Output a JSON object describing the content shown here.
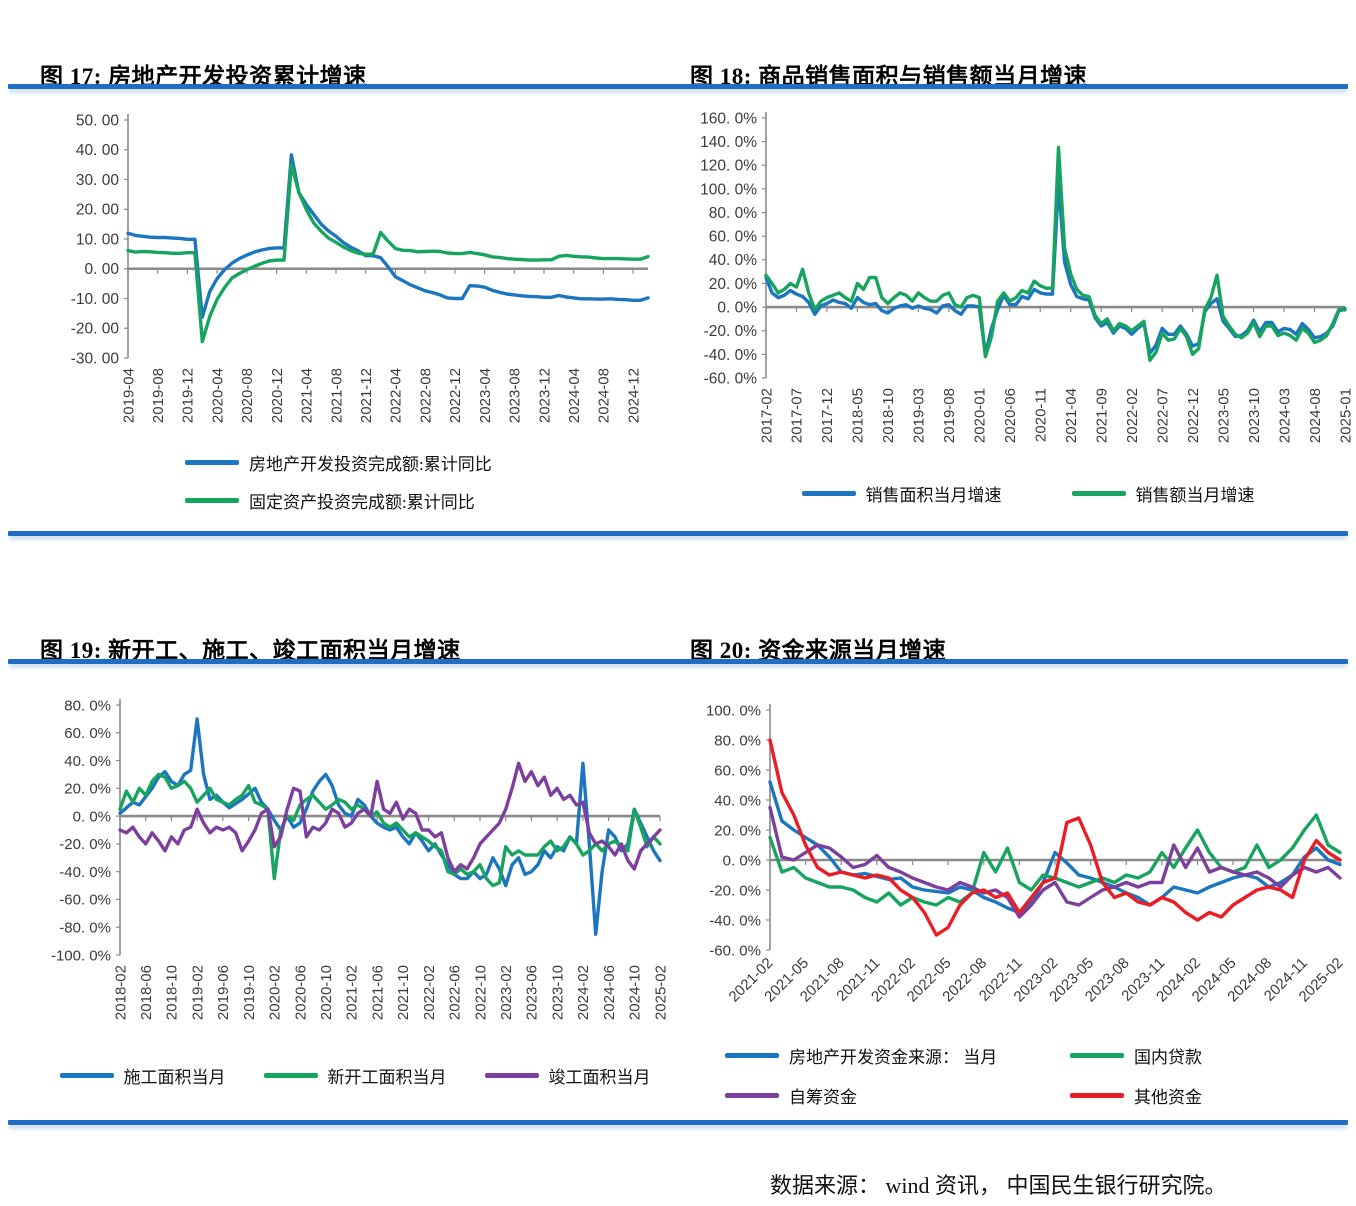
{
  "page": {
    "footer": "数据来源： wind 资讯， 中国民生银行研究院。"
  },
  "chart_data": [
    {
      "id": "fig17",
      "type": "line",
      "title": "图 17: 房地产开发投资累计增速",
      "ylim": [
        -30,
        50
      ],
      "grid": false,
      "legend_position": "bottom-left",
      "y_tick_values": [
        50,
        40,
        30,
        20,
        10,
        0,
        -10,
        -20,
        -30
      ],
      "y_tick_labels": [
        "50. 00",
        "40. 00",
        "30. 00",
        "20. 00",
        "10. 00",
        "0. 00",
        "-10. 00",
        "-20. 00",
        "-30. 00"
      ],
      "x_tick_every": 4,
      "x_tick_labels": [
        "2019-04",
        "2019-08",
        "2019-12",
        "2020-04",
        "2020-08",
        "2020-12",
        "2021-04",
        "2021-08",
        "2021-12",
        "2022-04",
        "2022-08",
        "2022-12",
        "2023-04",
        "2023-08",
        "2023-12",
        "2024-04",
        "2024-08",
        "2024-12"
      ],
      "x_range_note": "monthly points 2019-04 to 2025-02",
      "series": [
        {
          "name": "房地产开发投资完成额:累计同比",
          "color": "#1b75bf",
          "values": [
            11.9,
            11.2,
            10.9,
            10.6,
            10.5,
            10.5,
            10.3,
            10.2,
            9.9,
            9.9,
            -16.3,
            -7.7,
            -3.3,
            -0.3,
            1.9,
            3.4,
            4.6,
            5.6,
            6.3,
            6.8,
            7.0,
            7.0,
            38.3,
            25.6,
            21.6,
            18.3,
            15.0,
            12.7,
            10.9,
            8.8,
            7.2,
            6.0,
            4.4,
            4.4,
            3.7,
            0.7,
            -2.7,
            -4.0,
            -5.4,
            -6.4,
            -7.4,
            -8.0,
            -8.8,
            -9.8,
            -10.0,
            -10.0,
            -5.7,
            -5.8,
            -6.2,
            -7.2,
            -7.9,
            -8.5,
            -8.8,
            -9.1,
            -9.3,
            -9.4,
            -9.6,
            -9.6,
            -9.0,
            -9.5,
            -9.8,
            -10.1,
            -10.1,
            -10.2,
            -10.2,
            -10.1,
            -10.3,
            -10.4,
            -10.6,
            -10.6,
            -9.8
          ]
        },
        {
          "name": "固定资产投资完成额:累计同比",
          "color": "#17a45f",
          "values": [
            6.1,
            5.6,
            5.8,
            5.7,
            5.5,
            5.4,
            5.2,
            5.2,
            5.4,
            5.4,
            -24.5,
            -16.1,
            -10.3,
            -6.3,
            -3.1,
            -1.6,
            -0.3,
            0.8,
            1.8,
            2.6,
            2.9,
            2.9,
            35.0,
            25.6,
            19.9,
            15.4,
            12.6,
            10.3,
            8.9,
            7.3,
            6.1,
            5.2,
            4.9,
            4.9,
            12.2,
            9.3,
            6.8,
            6.2,
            6.1,
            5.7,
            5.8,
            5.9,
            5.8,
            5.3,
            5.1,
            5.1,
            5.5,
            5.1,
            4.7,
            4.0,
            3.8,
            3.4,
            3.2,
            3.1,
            2.9,
            2.9,
            3.0,
            3.0,
            4.2,
            4.5,
            4.2,
            4.0,
            3.9,
            3.6,
            3.4,
            3.4,
            3.4,
            3.3,
            3.2,
            3.2,
            4.1
          ]
        }
      ]
    },
    {
      "id": "fig18",
      "type": "line",
      "title": "图 18: 商品销售面积与销售额当月增速",
      "ylim": [
        -60,
        160
      ],
      "grid": false,
      "legend_position": "bottom-center",
      "y_tick_values": [
        160,
        140,
        120,
        100,
        80,
        60,
        40,
        20,
        0,
        -20,
        -40,
        -60
      ],
      "y_tick_labels": [
        "160. 0%",
        "140. 0%",
        "120. 0%",
        "100. 0%",
        "80. 0%",
        "60. 0%",
        "40. 0%",
        "20. 0%",
        "0. 0%",
        "-20. 0%",
        "-40. 0%",
        "-60. 0%"
      ],
      "x_tick_every": 5,
      "x_tick_labels": [
        "2017-02",
        "2017-07",
        "2017-12",
        "2018-05",
        "2018-10",
        "2019-03",
        "2019-08",
        "2020-01",
        "2020-06",
        "2020-11",
        "2021-04",
        "2021-09",
        "2022-02",
        "2022-07",
        "2022-12",
        "2023-05",
        "2023-10",
        "2024-03",
        "2024-08",
        "2025-01"
      ],
      "x_range_note": "monthly points 2017-02 to 2025-01",
      "series": [
        {
          "name": "销售面积当月增速",
          "color": "#1b75bf",
          "values": [
            25,
            12,
            8,
            10,
            14,
            11,
            9,
            4,
            -6,
            1,
            3,
            6,
            4,
            3,
            -1,
            8,
            4,
            2,
            3,
            -3,
            -5,
            -1,
            1,
            2,
            -1,
            1,
            -1,
            -2,
            -5,
            1,
            2,
            -3,
            -6,
            1,
            1,
            0,
            -40,
            -18,
            -2,
            10,
            2,
            2,
            9,
            7,
            15,
            12,
            11,
            11,
            105,
            38,
            19,
            9,
            7,
            6,
            -9,
            -16,
            -13,
            -22,
            -16,
            -18,
            -23,
            -18,
            -14,
            -39,
            -32,
            -18,
            -23,
            -23,
            -16,
            -23,
            -33,
            -31,
            -4,
            3,
            7,
            -12,
            -18,
            -25,
            -24,
            -20,
            -11,
            -21,
            -13,
            -13,
            -21,
            -18,
            -19,
            -23,
            -14,
            -19,
            -26,
            -25,
            -22,
            -16,
            -3,
            -2
          ]
        },
        {
          "name": "销售额当月增速",
          "color": "#17a45f",
          "values": [
            27,
            20,
            12,
            15,
            20,
            17,
            32,
            12,
            -2,
            5,
            8,
            10,
            12,
            8,
            5,
            20,
            15,
            25,
            25,
            8,
            3,
            8,
            12,
            10,
            5,
            12,
            8,
            5,
            5,
            10,
            12,
            2,
            0,
            8,
            10,
            8,
            -42,
            -25,
            5,
            12,
            5,
            8,
            14,
            12,
            22,
            18,
            16,
            16,
            135,
            50,
            28,
            15,
            10,
            9,
            -7,
            -14,
            -10,
            -20,
            -14,
            -16,
            -20,
            -16,
            -12,
            -45,
            -38,
            -22,
            -28,
            -27,
            -18,
            -25,
            -40,
            -35,
            -2,
            8,
            27,
            -8,
            -16,
            -23,
            -26,
            -22,
            -13,
            -25,
            -16,
            -16,
            -24,
            -22,
            -24,
            -28,
            -18,
            -22,
            -30,
            -28,
            -24,
            -14,
            -2,
            -1
          ]
        }
      ]
    },
    {
      "id": "fig19",
      "type": "line",
      "title": "图 19: 新开工、施工、竣工面积当月增速",
      "ylim": [
        -100,
        80
      ],
      "grid": false,
      "legend_position": "bottom-center",
      "y_tick_values": [
        80,
        60,
        40,
        20,
        0,
        -20,
        -40,
        -60,
        -80,
        -100
      ],
      "y_tick_labels": [
        "80. 0%",
        "60. 0%",
        "40. 0%",
        "20. 0%",
        "0. 0%",
        "-20. 0%",
        "-40. 0%",
        "-60. 0%",
        "-80. 0%",
        "-100. 0%"
      ],
      "x_tick_every": 4,
      "x_tick_labels": [
        "2018-02",
        "2018-06",
        "2018-10",
        "2019-02",
        "2019-06",
        "2019-10",
        "2020-02",
        "2020-06",
        "2020-10",
        "2021-02",
        "2021-06",
        "2021-10",
        "2022-02",
        "2022-06",
        "2022-10",
        "2023-02",
        "2023-06",
        "2023-10",
        "2024-02",
        "2024-06",
        "2024-10",
        "2025-02"
      ],
      "x_range_note": "monthly points 2018-02 to 2025-02",
      "series": [
        {
          "name": "施工面积当月",
          "color": "#1b75bf",
          "values": [
            2,
            6,
            10,
            8,
            14,
            20,
            28,
            32,
            25,
            22,
            30,
            33,
            70,
            30,
            12,
            15,
            10,
            6,
            9,
            12,
            16,
            20,
            10,
            5,
            -3,
            -10,
            0,
            -8,
            -5,
            5,
            18,
            25,
            30,
            22,
            8,
            2,
            0,
            12,
            8,
            0,
            -5,
            -8,
            -10,
            -8,
            -15,
            -20,
            -12,
            -18,
            -25,
            -20,
            -28,
            -35,
            -42,
            -45,
            -45,
            -40,
            -45,
            -42,
            -30,
            -38,
            -50,
            -35,
            -30,
            -42,
            -40,
            -35,
            -25,
            -30,
            -22,
            -25,
            -15,
            -20,
            38,
            -20,
            -85,
            -40,
            -10,
            -15,
            -25,
            -20,
            5,
            -5,
            -15,
            -25,
            -32
          ]
        },
        {
          "name": "新开工面积当月",
          "color": "#17a45f",
          "values": [
            5,
            18,
            10,
            20,
            15,
            25,
            30,
            28,
            20,
            22,
            25,
            20,
            10,
            15,
            20,
            12,
            10,
            8,
            12,
            15,
            22,
            10,
            8,
            5,
            -45,
            -10,
            0,
            -3,
            8,
            12,
            15,
            10,
            5,
            8,
            12,
            10,
            5,
            8,
            5,
            0,
            3,
            -5,
            -8,
            -5,
            -10,
            -15,
            -12,
            -15,
            -18,
            -22,
            -25,
            -40,
            -42,
            -38,
            -42,
            -40,
            -35,
            -45,
            -50,
            -48,
            -22,
            -28,
            -25,
            -28,
            -28,
            -28,
            -22,
            -18,
            -25,
            -22,
            -15,
            -20,
            -28,
            -25,
            -20,
            -25,
            -20,
            -18,
            -22,
            -25,
            5,
            -8,
            -22,
            -15,
            -20
          ]
        },
        {
          "name": "竣工面积当月",
          "color": "#7d3f9d",
          "values": [
            -10,
            -12,
            -8,
            -15,
            -20,
            -12,
            -18,
            -25,
            -15,
            -20,
            -10,
            -8,
            5,
            -5,
            -12,
            -8,
            -10,
            -8,
            -12,
            -25,
            -18,
            -10,
            2,
            5,
            -22,
            -15,
            5,
            20,
            18,
            -15,
            -8,
            -10,
            -5,
            5,
            2,
            -8,
            -5,
            2,
            5,
            0,
            25,
            5,
            2,
            10,
            -2,
            5,
            2,
            -10,
            -10,
            -15,
            -12,
            -30,
            -40,
            -35,
            -38,
            -30,
            -20,
            -15,
            -10,
            -5,
            5,
            20,
            38,
            25,
            32,
            22,
            28,
            15,
            20,
            12,
            15,
            8,
            10,
            -12,
            -20,
            -18,
            -22,
            -28,
            -20,
            -32,
            -38,
            -25,
            -20,
            -15,
            -10
          ]
        }
      ]
    },
    {
      "id": "fig20",
      "type": "line",
      "title": "图 20: 资金来源当月增速",
      "ylim": [
        -60,
        100
      ],
      "grid": false,
      "legend_position": "bottom-grid",
      "y_tick_values": [
        100,
        80,
        60,
        40,
        20,
        0,
        -20,
        -40,
        -60
      ],
      "y_tick_labels": [
        "100. 0%",
        "80. 0%",
        "60. 0%",
        "40. 0%",
        "20. 0%",
        "0. 0%",
        "-20. 0%",
        "-40. 0%",
        "-60. 0%"
      ],
      "x_tick_every": 3,
      "x_tick_labels": [
        "2021-02",
        "2021-05",
        "2021-08",
        "2021-11",
        "2022-02",
        "2022-05",
        "2022-08",
        "2022-11",
        "2023-02",
        "2023-05",
        "2023-08",
        "2023-11",
        "2024-02",
        "2024-05",
        "2024-08",
        "2024-11",
        "2025-02"
      ],
      "x_range_note": "monthly points 2021-02 to 2025-02",
      "series": [
        {
          "name": "房地产开发资金来源： 当月",
          "color": "#1b75bf",
          "values": [
            52,
            26,
            20,
            15,
            10,
            2,
            -8,
            -10,
            -9,
            -11,
            -13,
            -12,
            -18,
            -20,
            -21,
            -22,
            -18,
            -20,
            -25,
            -28,
            -32,
            -35,
            -28,
            -15,
            5,
            -2,
            -10,
            -12,
            -15,
            -18,
            -22,
            -25,
            -30,
            -25,
            -18,
            -20,
            -22,
            -18,
            -15,
            -12,
            -10,
            -12,
            -18,
            -15,
            -10,
            2,
            8,
            0,
            -3
          ]
        },
        {
          "name": "国内贷款",
          "color": "#17a45f",
          "values": [
            15,
            -8,
            -5,
            -12,
            -15,
            -18,
            -18,
            -20,
            -25,
            -28,
            -22,
            -30,
            -25,
            -28,
            -30,
            -25,
            -28,
            -22,
            5,
            -8,
            8,
            -15,
            -20,
            -10,
            -12,
            -15,
            -18,
            -15,
            -12,
            -15,
            -10,
            -12,
            -8,
            5,
            -5,
            8,
            20,
            5,
            -5,
            -8,
            -5,
            10,
            -5,
            0,
            8,
            20,
            30,
            10,
            5
          ]
        },
        {
          "name": "自筹资金",
          "color": "#7d3f9d",
          "values": [
            35,
            2,
            0,
            5,
            10,
            8,
            2,
            -5,
            -3,
            3,
            -5,
            -8,
            -12,
            -15,
            -18,
            -20,
            -15,
            -18,
            -22,
            -20,
            -25,
            -38,
            -30,
            -20,
            -15,
            -28,
            -30,
            -25,
            -20,
            -18,
            -15,
            -18,
            -15,
            -15,
            10,
            -5,
            8,
            -8,
            -5,
            -8,
            -10,
            -8,
            -12,
            -18,
            -10,
            -5,
            -8,
            -5,
            -12
          ]
        },
        {
          "name": "其他资金",
          "color": "#ec1c24",
          "values": [
            80,
            45,
            30,
            10,
            -5,
            -10,
            -8,
            -10,
            -12,
            -10,
            -12,
            -20,
            -25,
            -35,
            -50,
            -45,
            -30,
            -22,
            -20,
            -25,
            -22,
            -35,
            -25,
            -15,
            -12,
            25,
            28,
            10,
            -15,
            -25,
            -22,
            -28,
            -30,
            -25,
            -28,
            -35,
            -40,
            -35,
            -38,
            -30,
            -25,
            -20,
            -18,
            -20,
            -25,
            0,
            13,
            5,
            0
          ]
        }
      ]
    }
  ]
}
